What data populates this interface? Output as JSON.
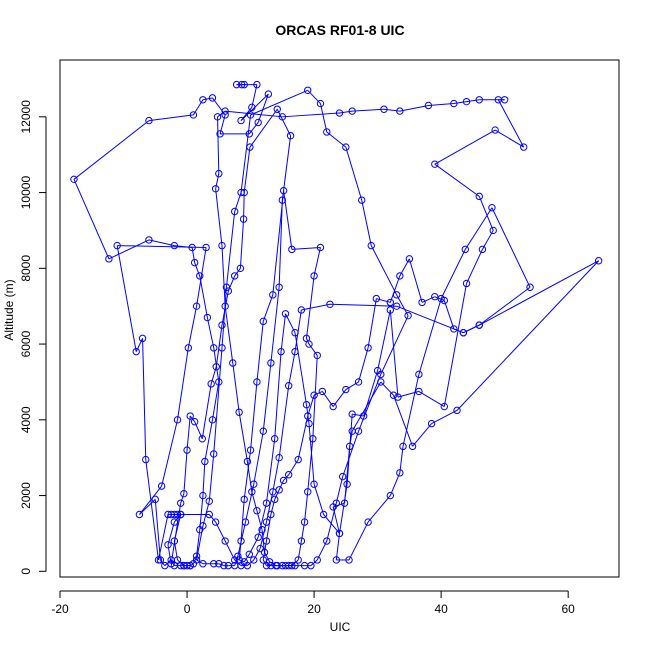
{
  "chart_data": {
    "type": "line",
    "title": "ORCAS RF01-8 UIC",
    "xlabel": "UIC",
    "ylabel": "Altitude (m)",
    "xlim": [
      -20,
      68
    ],
    "ylim": [
      -150,
      13500
    ],
    "xticks": [
      -20,
      0,
      20,
      40,
      60
    ],
    "yticks": [
      0,
      2000,
      4000,
      6000,
      8000,
      10000,
      12000
    ],
    "grid": false,
    "colors": {
      "series": "#0000ff",
      "axis": "#000000"
    },
    "series": [
      {
        "values": [
          [
            8.6,
            12850
          ],
          [
            9.0,
            12850
          ],
          [
            7.8,
            12850
          ],
          [
            11.0,
            12850
          ],
          [
            10.2,
            12250
          ],
          [
            8.5,
            11900
          ],
          [
            12.8,
            12600
          ],
          [
            11.2,
            11850
          ],
          [
            9.8,
            11550
          ],
          [
            5.2,
            11550
          ],
          [
            6.0,
            12050
          ],
          [
            4.0,
            12500
          ],
          [
            2.5,
            12450
          ],
          [
            1.0,
            12050
          ],
          [
            -6.0,
            11900
          ],
          [
            -17.8,
            10350
          ],
          [
            -12.3,
            8250
          ],
          [
            -6.0,
            8750
          ],
          [
            -2.0,
            8600
          ],
          [
            0.8,
            8550
          ],
          [
            1.2,
            8150
          ],
          [
            2.0,
            7800
          ],
          [
            3.2,
            6700
          ],
          [
            4.2,
            5900
          ],
          [
            5.0,
            5000
          ],
          [
            4.0,
            4000
          ],
          [
            2.8,
            2900
          ],
          [
            2.5,
            2000
          ],
          [
            2.0,
            1100
          ],
          [
            1.5,
            400
          ],
          [
            1.0,
            200
          ],
          [
            0.5,
            150
          ],
          [
            0.0,
            150
          ],
          [
            -0.5,
            150
          ],
          [
            -1.0,
            150
          ],
          [
            -2.0,
            150
          ],
          [
            -2.5,
            300
          ],
          [
            -3.5,
            150
          ],
          [
            -4.2,
            300
          ],
          [
            -5.0,
            1900
          ],
          [
            -7.5,
            1500
          ],
          [
            -4.0,
            2250
          ],
          [
            -1.5,
            4000
          ],
          [
            0.2,
            5900
          ],
          [
            1.5,
            7000
          ],
          [
            3.0,
            8550
          ],
          [
            -11.0,
            8600
          ],
          [
            -8.0,
            5800
          ],
          [
            -7.0,
            6150
          ],
          [
            -6.5,
            2950
          ],
          [
            -4.5,
            300
          ],
          [
            -3.0,
            1500
          ],
          [
            -2.5,
            1500
          ],
          [
            -2.0,
            1500
          ],
          [
            -1.5,
            1500
          ],
          [
            -1.0,
            1500
          ],
          [
            -2.0,
            1300
          ],
          [
            -3.0,
            700
          ],
          [
            -2.5,
            200
          ],
          [
            -1.0,
            1800
          ],
          [
            -0.5,
            2050
          ],
          [
            0.0,
            3200
          ],
          [
            0.5,
            4100
          ],
          [
            1.2,
            3950
          ],
          [
            2.4,
            3500
          ],
          [
            3.8,
            4950
          ],
          [
            4.6,
            5400
          ],
          [
            5.5,
            6500
          ],
          [
            6.5,
            7400
          ],
          [
            7.5,
            7800
          ],
          [
            8.4,
            8000
          ],
          [
            8.9,
            9300
          ],
          [
            9.0,
            10000
          ],
          [
            9.9,
            11200
          ],
          [
            14.2,
            12200
          ],
          [
            16.3,
            11500
          ],
          [
            15.0,
            9800
          ],
          [
            14.5,
            7500
          ],
          [
            13.2,
            5500
          ],
          [
            12.0,
            3700
          ],
          [
            10.5,
            2300
          ],
          [
            9.2,
            1300
          ],
          [
            8.0,
            400
          ],
          [
            7.5,
            150
          ],
          [
            6.5,
            150
          ],
          [
            5.8,
            150
          ],
          [
            5.0,
            200
          ],
          [
            4.2,
            200
          ],
          [
            2.5,
            200
          ],
          [
            1.5,
            300
          ],
          [
            2.5,
            1200
          ],
          [
            3.5,
            1850
          ],
          [
            4.2,
            3100
          ],
          [
            5.5,
            5900
          ],
          [
            6.2,
            7500
          ],
          [
            7.5,
            9500
          ],
          [
            8.5,
            10000
          ],
          [
            10.0,
            12050
          ],
          [
            19.0,
            12700
          ],
          [
            21.0,
            12350
          ],
          [
            22.0,
            11600
          ],
          [
            25.0,
            11200
          ],
          [
            27.5,
            9800
          ],
          [
            29.0,
            8600
          ],
          [
            33.0,
            7300
          ],
          [
            34.8,
            6750
          ],
          [
            30.5,
            5200
          ],
          [
            27.0,
            3700
          ],
          [
            24.5,
            2500
          ],
          [
            23.5,
            1800
          ],
          [
            22.0,
            800
          ],
          [
            20.5,
            300
          ],
          [
            19.5,
            150
          ],
          [
            18.5,
            150
          ],
          [
            17.0,
            150
          ],
          [
            16.0,
            150
          ],
          [
            15.0,
            150
          ],
          [
            14.2,
            150
          ],
          [
            13.2,
            150
          ],
          [
            12.5,
            150
          ],
          [
            12.0,
            300
          ],
          [
            12.5,
            800
          ],
          [
            13.2,
            1500
          ],
          [
            13.8,
            1900
          ],
          [
            14.5,
            2150
          ],
          [
            15.2,
            2400
          ],
          [
            16.0,
            2550
          ],
          [
            17.5,
            2950
          ],
          [
            19.0,
            4100
          ],
          [
            20.0,
            4650
          ],
          [
            21.3,
            4750
          ],
          [
            23.0,
            4350
          ],
          [
            25.0,
            4800
          ],
          [
            27.0,
            5000
          ],
          [
            28.5,
            5900
          ],
          [
            29.8,
            7200
          ],
          [
            32.0,
            7100
          ],
          [
            33.5,
            7800
          ],
          [
            35.0,
            8250
          ],
          [
            37.0,
            7100
          ],
          [
            39.0,
            7250
          ],
          [
            40.5,
            7150
          ],
          [
            42.0,
            6400
          ],
          [
            43.5,
            6300
          ],
          [
            46.0,
            6500
          ],
          [
            54.0,
            7500
          ],
          [
            48.0,
            9600
          ],
          [
            43.8,
            8500
          ],
          [
            40.0,
            7200
          ],
          [
            36.5,
            5200
          ],
          [
            34.0,
            3300
          ],
          [
            33.5,
            2600
          ],
          [
            32.0,
            2000
          ],
          [
            28.5,
            1300
          ],
          [
            25.5,
            300
          ],
          [
            23.5,
            300
          ],
          [
            24.0,
            1000
          ],
          [
            25.2,
            2300
          ],
          [
            26.0,
            4150
          ],
          [
            27.8,
            4100
          ],
          [
            30.0,
            5300
          ],
          [
            32.0,
            6900
          ],
          [
            33.2,
            4600
          ],
          [
            36.5,
            4750
          ],
          [
            40.5,
            4350
          ],
          [
            44.0,
            7600
          ],
          [
            46.5,
            8500
          ],
          [
            48.2,
            9000
          ],
          [
            46.0,
            9900
          ],
          [
            39.0,
            10750
          ],
          [
            48.5,
            11650
          ],
          [
            53.0,
            11200
          ],
          [
            49.0,
            12450
          ],
          [
            50.0,
            12450
          ],
          [
            46.0,
            12450
          ],
          [
            44.0,
            12400
          ],
          [
            42.0,
            12350
          ],
          [
            38.0,
            12300
          ],
          [
            33.5,
            12150
          ],
          [
            31.0,
            12200
          ],
          [
            26.0,
            12150
          ],
          [
            24.0,
            12100
          ],
          [
            15.0,
            12000
          ],
          [
            6.0,
            12150
          ],
          [
            4.8,
            12000
          ],
          [
            5.0,
            10500
          ],
          [
            4.5,
            10100
          ],
          [
            5.5,
            8600
          ],
          [
            6.0,
            7000
          ],
          [
            7.2,
            5500
          ],
          [
            8.2,
            4200
          ],
          [
            9.5,
            2900
          ],
          [
            10.2,
            2100
          ],
          [
            11.0,
            1600
          ],
          [
            11.8,
            1100
          ],
          [
            12.2,
            500
          ],
          [
            13.0,
            250
          ],
          [
            14.0,
            150
          ],
          [
            15.5,
            150
          ],
          [
            16.5,
            150
          ],
          [
            17.5,
            300
          ],
          [
            18.0,
            800
          ],
          [
            18.5,
            1300
          ],
          [
            19.0,
            2100
          ],
          [
            19.8,
            3500
          ],
          [
            20.5,
            5700
          ],
          [
            19.2,
            6000
          ],
          [
            18.8,
            6150
          ],
          [
            20.0,
            7800
          ],
          [
            21.0,
            8550
          ],
          [
            16.5,
            8500
          ],
          [
            15.2,
            10050
          ],
          [
            13.5,
            7300
          ],
          [
            12.0,
            6600
          ],
          [
            11.0,
            5000
          ],
          [
            10.0,
            3200
          ],
          [
            9.0,
            1900
          ],
          [
            8.5,
            800
          ],
          [
            8.2,
            300
          ],
          [
            9.0,
            250
          ],
          [
            9.8,
            450
          ],
          [
            11.2,
            900
          ],
          [
            12.5,
            1800
          ],
          [
            13.8,
            3500
          ],
          [
            14.8,
            5800
          ],
          [
            15.5,
            6800
          ],
          [
            17.0,
            6300
          ],
          [
            18.8,
            4400
          ],
          [
            19.2,
            3900
          ],
          [
            20.0,
            2300
          ],
          [
            21.5,
            1500
          ],
          [
            24.0,
            1000
          ],
          [
            23.0,
            1700
          ],
          [
            24.8,
            1800
          ],
          [
            25.6,
            3300
          ],
          [
            26.0,
            3700
          ],
          [
            30.5,
            5000
          ],
          [
            32.5,
            4650
          ],
          [
            35.5,
            3300
          ],
          [
            38.5,
            3900
          ],
          [
            42.5,
            4250
          ],
          [
            64.8,
            8200
          ],
          [
            46.0,
            6500
          ],
          [
            43.5,
            6300
          ],
          [
            33.0,
            7000
          ],
          [
            22.5,
            7050
          ],
          [
            18.0,
            6900
          ],
          [
            17.0,
            5800
          ],
          [
            16.0,
            4900
          ],
          [
            14.5,
            3000
          ],
          [
            13.5,
            2100
          ],
          [
            12.5,
            1300
          ],
          [
            11.5,
            600
          ],
          [
            10.5,
            300
          ],
          [
            9.5,
            150
          ],
          [
            8.5,
            150
          ],
          [
            7.5,
            300
          ],
          [
            6.0,
            800
          ],
          [
            4.5,
            1300
          ],
          [
            3.5,
            1500
          ],
          [
            -1.0,
            1500
          ],
          [
            -2.0,
            800
          ],
          [
            -1.5,
            300
          ],
          [
            -0.5,
            150
          ],
          [
            0.5,
            150
          ]
        ]
      }
    ]
  }
}
